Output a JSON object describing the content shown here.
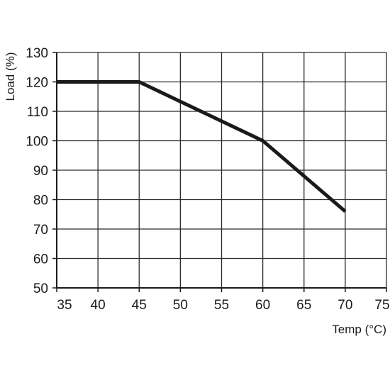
{
  "chart_data": {
    "type": "line",
    "title": "",
    "xlabel": "Temp (°C)",
    "ylabel": "Load (%)",
    "xlim": [
      35,
      75
    ],
    "ylim": [
      50,
      130
    ],
    "xticks": [
      35,
      40,
      45,
      50,
      55,
      60,
      65,
      70,
      75
    ],
    "yticks": [
      50,
      60,
      70,
      80,
      90,
      100,
      110,
      120,
      130
    ],
    "grid": true,
    "series": [
      {
        "x": [
          35,
          45,
          60,
          70
        ],
        "y": [
          120,
          120,
          100,
          76
        ]
      }
    ],
    "colors": {
      "line": "#1a1a1a",
      "grid": "#2a2a2a",
      "axis": "#1a1a1a"
    }
  }
}
